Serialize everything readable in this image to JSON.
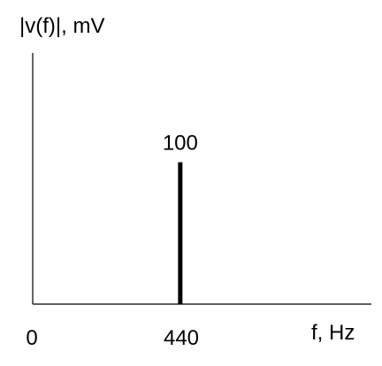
{
  "chart_data": {
    "type": "bar",
    "ylabel": "|v(f)|, mV",
    "xlabel": "f, Hz",
    "x_ticks": [
      "0",
      "440"
    ],
    "x_origin": 0,
    "xlim": [
      0,
      1010
    ],
    "ylim": [
      0,
      177
    ],
    "grid": false,
    "series": [
      {
        "values": [
          {
            "x": 440,
            "y": 100,
            "label": "100"
          }
        ]
      }
    ],
    "colors": {
      "axis": "#000000",
      "line": "#000000"
    }
  }
}
